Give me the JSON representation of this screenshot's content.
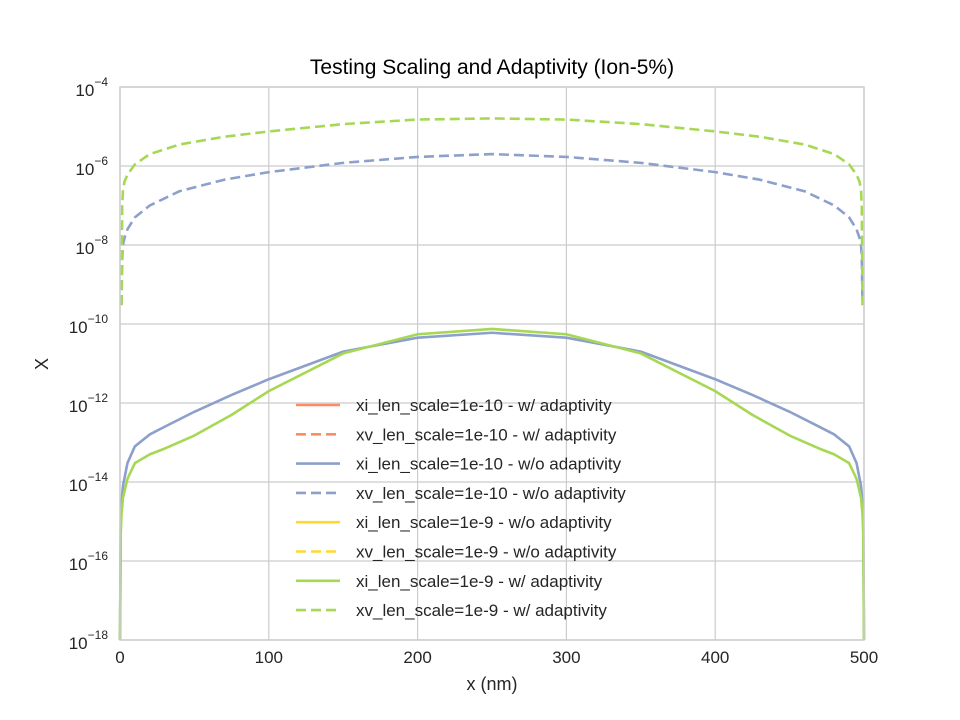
{
  "chart_data": {
    "type": "line",
    "title": "Testing Scaling and Adaptivity (Ion-5%)",
    "xlabel": "x (nm)",
    "ylabel": "X",
    "xlim": [
      0,
      500
    ],
    "ylim": [
      1e-18,
      0.0001
    ],
    "yscale": "log",
    "grid": true,
    "legend_position": "lower-center",
    "x_ticks": [
      0,
      100,
      200,
      300,
      400,
      500
    ],
    "y_tick_exponents": [
      -18,
      -16,
      -14,
      -12,
      -10,
      -8,
      -6,
      -4
    ],
    "y_tick_base": "10",
    "series": [
      {
        "name": "xi_len_scale=1e-10 - w/ adaptivity",
        "color": "#fc8d62",
        "dash": "solid",
        "x": [],
        "y": []
      },
      {
        "name": "xv_len_scale=1e-10 - w/ adaptivity",
        "color": "#fc8d62",
        "dash": "dashed",
        "x": [],
        "y": []
      },
      {
        "name": "xi_len_scale=1e-10 - w/o adaptivity",
        "color": "#8da0cb",
        "dash": "solid",
        "x": [
          0,
          0.5,
          1,
          2,
          5,
          10,
          20,
          30,
          50,
          75,
          100,
          150,
          200,
          250,
          300,
          350,
          400,
          425,
          450,
          470,
          480,
          490,
          495,
          498,
          499,
          499.5,
          500
        ],
        "y": [
          1e-18,
          1e-15,
          3e-15,
          8e-15,
          3e-14,
          8e-14,
          1.6e-13,
          2.5e-13,
          6e-13,
          1.6e-12,
          4e-12,
          2e-11,
          4.5e-11,
          6e-11,
          4.5e-11,
          2e-11,
          4e-12,
          1.6e-12,
          6e-13,
          2.5e-13,
          1.6e-13,
          8e-14,
          3e-14,
          8e-15,
          3e-15,
          1e-15,
          1e-18
        ]
      },
      {
        "name": "xv_len_scale=1e-10 - w/o adaptivity",
        "color": "#8da0cb",
        "dash": "dashed",
        "x": [
          1,
          1.5,
          2,
          3,
          5,
          10,
          20,
          40,
          70,
          100,
          150,
          200,
          250,
          300,
          350,
          400,
          430,
          460,
          480,
          490,
          495,
          497,
          498,
          498.5,
          499
        ],
        "y": [
          3e-10,
          5e-09,
          1e-08,
          1.5e-08,
          2.5e-08,
          5e-08,
          1e-07,
          2.3e-07,
          4.5e-07,
          7e-07,
          1.2e-06,
          1.7e-06,
          2e-06,
          1.7e-06,
          1.2e-06,
          7e-07,
          4.5e-07,
          2.3e-07,
          1e-07,
          5e-08,
          2.5e-08,
          1.5e-08,
          1e-08,
          5e-09,
          3e-10
        ]
      },
      {
        "name": "xi_len_scale=1e-9 - w/o adaptivity",
        "color": "#ffd92f",
        "dash": "solid",
        "x": [],
        "y": []
      },
      {
        "name": "xv_len_scale=1e-9 - w/o adaptivity",
        "color": "#ffd92f",
        "dash": "dashed",
        "x": [],
        "y": []
      },
      {
        "name": "xi_len_scale=1e-9 - w/ adaptivity",
        "color": "#a6d854",
        "dash": "solid",
        "x": [
          0,
          0.5,
          1,
          2,
          5,
          10,
          20,
          30,
          50,
          75,
          100,
          150,
          200,
          250,
          300,
          350,
          400,
          425,
          450,
          470,
          480,
          490,
          495,
          498,
          499,
          499.5,
          500
        ],
        "y": [
          1e-18,
          5e-16,
          1.5e-15,
          4e-15,
          1.2e-14,
          3e-14,
          5e-14,
          7e-14,
          1.5e-13,
          5e-13,
          2e-12,
          1.8e-11,
          5.5e-11,
          7.5e-11,
          5.5e-11,
          1.8e-11,
          2e-12,
          5e-13,
          1.5e-13,
          7e-14,
          5e-14,
          3e-14,
          1.2e-14,
          4e-15,
          1.5e-15,
          5e-16,
          1e-18
        ]
      },
      {
        "name": "xv_len_scale=1e-9 - w/ adaptivity",
        "color": "#a6d854",
        "dash": "dashed",
        "x": [
          1,
          1.5,
          2,
          3,
          5,
          10,
          20,
          40,
          70,
          100,
          150,
          200,
          250,
          300,
          350,
          400,
          430,
          460,
          480,
          490,
          495,
          497,
          498,
          498.5,
          499
        ],
        "y": [
          3e-10,
          1e-07,
          2.5e-07,
          4e-07,
          6e-07,
          1.1e-06,
          2e-06,
          3.5e-06,
          5.5e-06,
          7.5e-06,
          1.15e-05,
          1.5e-05,
          1.6e-05,
          1.5e-05,
          1.15e-05,
          7.5e-06,
          5.5e-06,
          3.5e-06,
          2e-06,
          1.1e-06,
          6e-07,
          4e-07,
          2.5e-07,
          1e-07,
          3e-10
        ]
      }
    ]
  }
}
